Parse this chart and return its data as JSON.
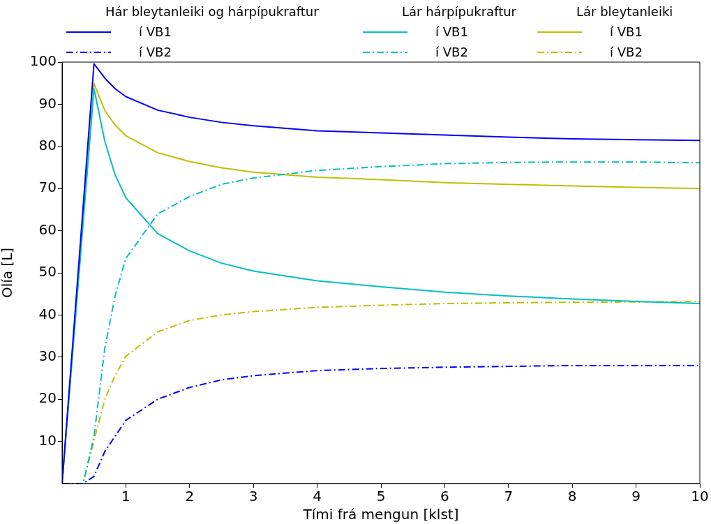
{
  "chart_data": {
    "type": "line",
    "xlabel": "Tími frá mengun [klst]",
    "ylabel": "Olía [L]",
    "xlim": [
      0,
      10
    ],
    "xticks": [
      1,
      2,
      3,
      4,
      5,
      6,
      7,
      8,
      9,
      10
    ],
    "ylim": [
      0,
      100
    ],
    "yticks": [
      10,
      20,
      30,
      40,
      50,
      60,
      70,
      80,
      90,
      100
    ],
    "grid": false,
    "legend": "top",
    "marker": "none",
    "annotations": [
      "Hár bleytanleiki og hárpípukraftur",
      "Lár hárpípukraftur",
      "Lár bleytanleiki"
    ],
    "series": [
      {
        "name": "í VB1",
        "color": "#0000ff",
        "line_style": "solid",
        "x": [
          0,
          0.5,
          0.67,
          0.83,
          1,
          1.5,
          2,
          2.5,
          3,
          4,
          5,
          6,
          7,
          8,
          9,
          10
        ],
        "values": [
          0,
          99.6,
          96.2,
          93.7,
          91.8,
          88.6,
          86.9,
          85.7,
          84.9,
          83.7,
          83.2,
          82.7,
          82.2,
          81.8,
          81.6,
          81.4
        ]
      },
      {
        "name": "í VB2",
        "color": "#0000ff",
        "line_style": "dashdot",
        "x": [
          0,
          0.33,
          0.5,
          0.67,
          0.83,
          1,
          1.5,
          2,
          2.5,
          3,
          4,
          5,
          6,
          7,
          8,
          9,
          10
        ],
        "values": [
          0,
          0,
          1.7,
          7.6,
          11.2,
          15.0,
          20.0,
          22.8,
          24.6,
          25.6,
          26.8,
          27.3,
          27.6,
          27.8,
          28.0,
          28.0,
          28.0
        ]
      },
      {
        "name": "í VB1",
        "color": "#00bfbf",
        "line_style": "solid",
        "x": [
          0,
          0.5,
          0.67,
          0.83,
          1,
          1.5,
          2,
          2.5,
          3,
          4,
          5,
          6,
          7,
          8,
          9,
          10
        ],
        "values": [
          0,
          93.7,
          81.2,
          73.3,
          67.8,
          59.3,
          55.2,
          52.3,
          50.4,
          48.1,
          46.7,
          45.4,
          44.5,
          43.8,
          43.2,
          42.7
        ]
      },
      {
        "name": "í VB2",
        "color": "#00bfbf",
        "line_style": "dashdot",
        "x": [
          0,
          0.33,
          0.5,
          0.67,
          0.83,
          1,
          1.5,
          2,
          2.5,
          3,
          4,
          5,
          6,
          7,
          8,
          9,
          10
        ],
        "values": [
          0,
          0,
          11.2,
          32.1,
          44.5,
          53.4,
          64.0,
          68.1,
          71.0,
          72.5,
          74.3,
          75.2,
          75.9,
          76.2,
          76.3,
          76.3,
          76.1
        ]
      },
      {
        "name": "í VB1",
        "color": "#bfbf00",
        "line_style": "solid",
        "x": [
          0,
          0.5,
          0.67,
          0.83,
          1,
          1.5,
          2,
          2.5,
          3,
          4,
          5,
          6,
          7,
          8,
          9,
          10
        ],
        "values": [
          0,
          94.9,
          88.5,
          85.1,
          82.5,
          78.5,
          76.4,
          74.9,
          73.9,
          72.7,
          72.1,
          71.4,
          71.0,
          70.6,
          70.3,
          70.0
        ]
      },
      {
        "name": "í VB2",
        "color": "#bfbf00",
        "line_style": "dashdot",
        "x": [
          0,
          0.33,
          0.5,
          0.67,
          0.83,
          1,
          1.5,
          2,
          2.5,
          3,
          4,
          5,
          6,
          7,
          8,
          9,
          10
        ],
        "values": [
          0,
          0,
          10.2,
          20.0,
          25.6,
          30.2,
          36.0,
          38.7,
          40.0,
          40.8,
          41.8,
          42.3,
          42.7,
          42.9,
          43.0,
          43.1,
          43.2
        ]
      }
    ]
  }
}
